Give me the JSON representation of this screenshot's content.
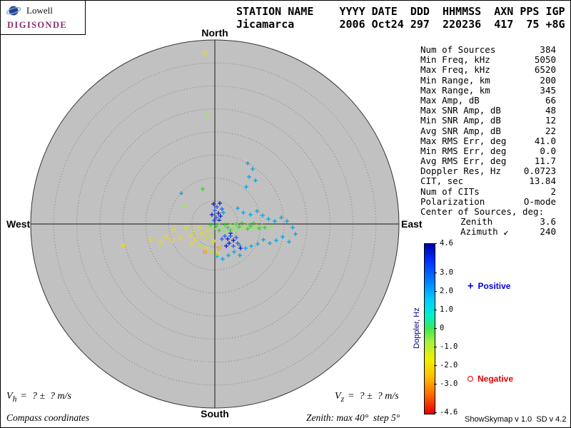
{
  "logo": {
    "name": "Lowell",
    "product": "DIGISONDE"
  },
  "header": {
    "line1": "STATION NAME    YYYY DATE  DDD  HHMMSS  AXN PPS IGP",
    "line2": "Jicamarca       2006 Oct24 297  220236  417  75 +8G"
  },
  "compass": {
    "north": "North",
    "south": "South",
    "west": "West",
    "east": "East"
  },
  "stats": {
    "rows": [
      {
        "label": "Num of Sources",
        "value": "384"
      },
      {
        "label": "Min Freq, kHz",
        "value": "5050"
      },
      {
        "label": "Max Freq, kHz",
        "value": "6520"
      },
      {
        "label": "Min Range, km",
        "value": "200"
      },
      {
        "label": "Max Range, km",
        "value": "345"
      },
      {
        "label": "Max Amp, dB",
        "value": "66"
      },
      {
        "label": "Max SNR Amp, dB",
        "value": "48"
      },
      {
        "label": "Min SNR Amp, dB",
        "value": "12"
      },
      {
        "label": "Avg SNR Amp, dB",
        "value": "22"
      },
      {
        "label": "Max RMS Err, deg",
        "value": "41.0"
      },
      {
        "label": "Min RMS Err, deg",
        "value": "0.0"
      },
      {
        "label": "Avg RMS Err, deg",
        "value": "11.7"
      },
      {
        "label": "Doppler Res, Hz",
        "value": "0.0723"
      },
      {
        "label": "CIT, sec",
        "value": "13.84"
      },
      {
        "label": "Num of CITs",
        "value": "2"
      },
      {
        "label": "Polarization",
        "value": "O-mode"
      },
      {
        "label": "Center of Sources, deg:",
        "value": ""
      },
      {
        "label": "Zenith",
        "value": "3.6",
        "indent": 1
      },
      {
        "label": "Azimuth ↙",
        "value": "240",
        "indent": 1
      }
    ]
  },
  "colorbar": {
    "title": "Doppler, Hz",
    "max": 4.6,
    "min": -4.6,
    "ticks": [
      "4.6",
      "3.0",
      "2.0",
      "1.0",
      "0",
      "-1.0",
      "-2.0",
      "-3.0",
      "-4.6"
    ]
  },
  "legend": {
    "positive_label": "Positive",
    "negative_label": "Negative",
    "positive_color": "#0000dd",
    "negative_color": "#dd0000"
  },
  "footer": {
    "vh_main": "V",
    "vh_sub": "h",
    "vh_value": "=  ? ±  ? m/s",
    "vz_main": "V",
    "vz_sub": "z",
    "vz_value": "=  ? ±  ? m/s",
    "coordinates": "Compass coordinates",
    "zenith_note": "Zenith: max 40°  step 5°",
    "version": "ShowSkymap v 1.0  SD v 4.2"
  },
  "chart_data": {
    "type": "scatter",
    "title": "Digisonde skymap of sources, compass coordinates",
    "axes": {
      "top": "North",
      "bottom": "South",
      "left": "West",
      "right": "East"
    },
    "zenith_max_deg": 40,
    "zenith_step_deg": 5,
    "rings": 8,
    "doppler_hz_range": [
      -4.6,
      4.6
    ],
    "marker_legend": {
      "p": "plus = positive Doppler source",
      "o": "circle = negative Doppler source"
    },
    "palette": {
      "b1": "#0a1ecb",
      "b2": "#2b59f5",
      "cy": "#00a6e8",
      "g1": "#3ecb3e",
      "g2": "#9ae84f",
      "yg": "#cfe01e",
      "ye": "#efdc00",
      "or": "#ff9a00"
    },
    "points": [
      [
        286,
        73,
        "o",
        "ye"
      ],
      [
        289,
        160,
        "p",
        "g2"
      ],
      [
        253,
        270,
        "p",
        "cy"
      ],
      [
        283,
        264,
        "p",
        "g1"
      ],
      [
        257,
        288,
        "p",
        "g2"
      ],
      [
        346,
        228,
        "p",
        "cy"
      ],
      [
        353,
        236,
        "p",
        "cy"
      ],
      [
        348,
        247,
        "p",
        "cy"
      ],
      [
        357,
        252,
        "p",
        "cy"
      ],
      [
        344,
        261,
        "p",
        "cy"
      ],
      [
        298,
        285,
        "p",
        "b1"
      ],
      [
        303,
        289,
        "p",
        "b2"
      ],
      [
        307,
        284,
        "p",
        "b1"
      ],
      [
        300,
        294,
        "p",
        "b2"
      ],
      [
        305,
        298,
        "p",
        "b1"
      ],
      [
        310,
        292,
        "p",
        "b2"
      ],
      [
        296,
        300,
        "p",
        "b1"
      ],
      [
        302,
        304,
        "p",
        "b2"
      ],
      [
        308,
        302,
        "p",
        "b1"
      ],
      [
        312,
        297,
        "p",
        "cy"
      ],
      [
        299,
        308,
        "p",
        "b2"
      ],
      [
        306,
        308,
        "p",
        "b1"
      ],
      [
        332,
        291,
        "p",
        "cy"
      ],
      [
        340,
        297,
        "p",
        "cy"
      ],
      [
        350,
        300,
        "p",
        "cy"
      ],
      [
        359,
        295,
        "p",
        "cy"
      ],
      [
        367,
        301,
        "p",
        "cy"
      ],
      [
        375,
        306,
        "p",
        "cy"
      ],
      [
        384,
        309,
        "p",
        "cy"
      ],
      [
        393,
        304,
        "p",
        "cy"
      ],
      [
        401,
        309,
        "p",
        "cy"
      ],
      [
        409,
        318,
        "p",
        "cy"
      ],
      [
        413,
        327,
        "p",
        "cy"
      ],
      [
        404,
        338,
        "p",
        "cy"
      ],
      [
        395,
        331,
        "p",
        "cy"
      ],
      [
        386,
        336,
        "p",
        "cy"
      ],
      [
        377,
        340,
        "p",
        "cy"
      ],
      [
        368,
        335,
        "p",
        "cy"
      ],
      [
        360,
        341,
        "p",
        "cy"
      ],
      [
        351,
        344,
        "p",
        "cy"
      ],
      [
        343,
        347,
        "p",
        "cy"
      ],
      [
        335,
        343,
        "p",
        "cy"
      ],
      [
        327,
        352,
        "p",
        "cy"
      ],
      [
        335,
        357,
        "p",
        "cy"
      ],
      [
        319,
        357,
        "p",
        "cy"
      ],
      [
        311,
        362,
        "p",
        "cy"
      ],
      [
        303,
        358,
        "p",
        "cy"
      ],
      [
        314,
        330,
        "p",
        "b2"
      ],
      [
        318,
        334,
        "p",
        "b1"
      ],
      [
        322,
        330,
        "p",
        "b2"
      ],
      [
        326,
        336,
        "p",
        "b1"
      ],
      [
        330,
        332,
        "p",
        "b2"
      ],
      [
        320,
        340,
        "p",
        "b1"
      ],
      [
        326,
        344,
        "p",
        "b2"
      ],
      [
        316,
        344,
        "p",
        "b1"
      ],
      [
        332,
        340,
        "p",
        "b2"
      ],
      [
        322,
        326,
        "p",
        "b1"
      ],
      [
        310,
        334,
        "p",
        "b2"
      ],
      [
        336,
        347,
        "p",
        "b1"
      ],
      [
        290,
        318,
        "p",
        "g2"
      ],
      [
        294,
        314,
        "p",
        "g1"
      ],
      [
        298,
        320,
        "p",
        "g2"
      ],
      [
        302,
        316,
        "p",
        "g1"
      ],
      [
        306,
        312,
        "p",
        "g2"
      ],
      [
        306,
        322,
        "p",
        "g1"
      ],
      [
        310,
        318,
        "p",
        "g2"
      ],
      [
        314,
        314,
        "p",
        "g1"
      ],
      [
        314,
        324,
        "p",
        "g2"
      ],
      [
        318,
        318,
        "p",
        "g1"
      ],
      [
        322,
        314,
        "p",
        "g2"
      ],
      [
        322,
        322,
        "p",
        "g1"
      ],
      [
        326,
        318,
        "p",
        "g2"
      ],
      [
        330,
        313,
        "p",
        "g1"
      ],
      [
        330,
        322,
        "p",
        "g2"
      ],
      [
        334,
        317,
        "p",
        "g1"
      ],
      [
        338,
        320,
        "p",
        "g2"
      ],
      [
        338,
        312,
        "p",
        "g1"
      ],
      [
        342,
        316,
        "p",
        "g2"
      ],
      [
        346,
        320,
        "p",
        "g1"
      ],
      [
        346,
        312,
        "p",
        "g2"
      ],
      [
        350,
        316,
        "p",
        "g1"
      ],
      [
        354,
        319,
        "p",
        "g2"
      ],
      [
        354,
        312,
        "p",
        "g1"
      ],
      [
        358,
        316,
        "p",
        "g2"
      ],
      [
        362,
        319,
        "p",
        "g1"
      ],
      [
        366,
        315,
        "p",
        "g2"
      ],
      [
        370,
        318,
        "p",
        "g1"
      ],
      [
        374,
        320,
        "p",
        "g2"
      ],
      [
        380,
        317,
        "p",
        "g2"
      ],
      [
        172,
        343,
        "o",
        "ye"
      ],
      [
        210,
        334,
        "o",
        "ye"
      ],
      [
        224,
        339,
        "o",
        "ye"
      ],
      [
        232,
        331,
        "o",
        "ye"
      ],
      [
        240,
        336,
        "o",
        "ye"
      ],
      [
        243,
        321,
        "o",
        "ye"
      ],
      [
        252,
        333,
        "o",
        "ye"
      ],
      [
        260,
        319,
        "o",
        "ye"
      ],
      [
        266,
        329,
        "o",
        "ye"
      ],
      [
        270,
        322,
        "o",
        "yg"
      ],
      [
        274,
        334,
        "o",
        "ye"
      ],
      [
        278,
        318,
        "o",
        "yg"
      ],
      [
        282,
        327,
        "o",
        "ye"
      ],
      [
        286,
        333,
        "o",
        "yg"
      ],
      [
        290,
        322,
        "o",
        "ye"
      ],
      [
        294,
        330,
        "o",
        "yg"
      ],
      [
        298,
        337,
        "o",
        "ye"
      ],
      [
        268,
        341,
        "o",
        "ye"
      ],
      [
        278,
        344,
        "o",
        "yg"
      ],
      [
        288,
        347,
        "o",
        "ye"
      ],
      [
        296,
        351,
        "o",
        "yg"
      ],
      [
        304,
        355,
        "o",
        "ye"
      ],
      [
        286,
        352,
        "o",
        "or"
      ],
      [
        306,
        347,
        "o",
        "or"
      ]
    ]
  }
}
